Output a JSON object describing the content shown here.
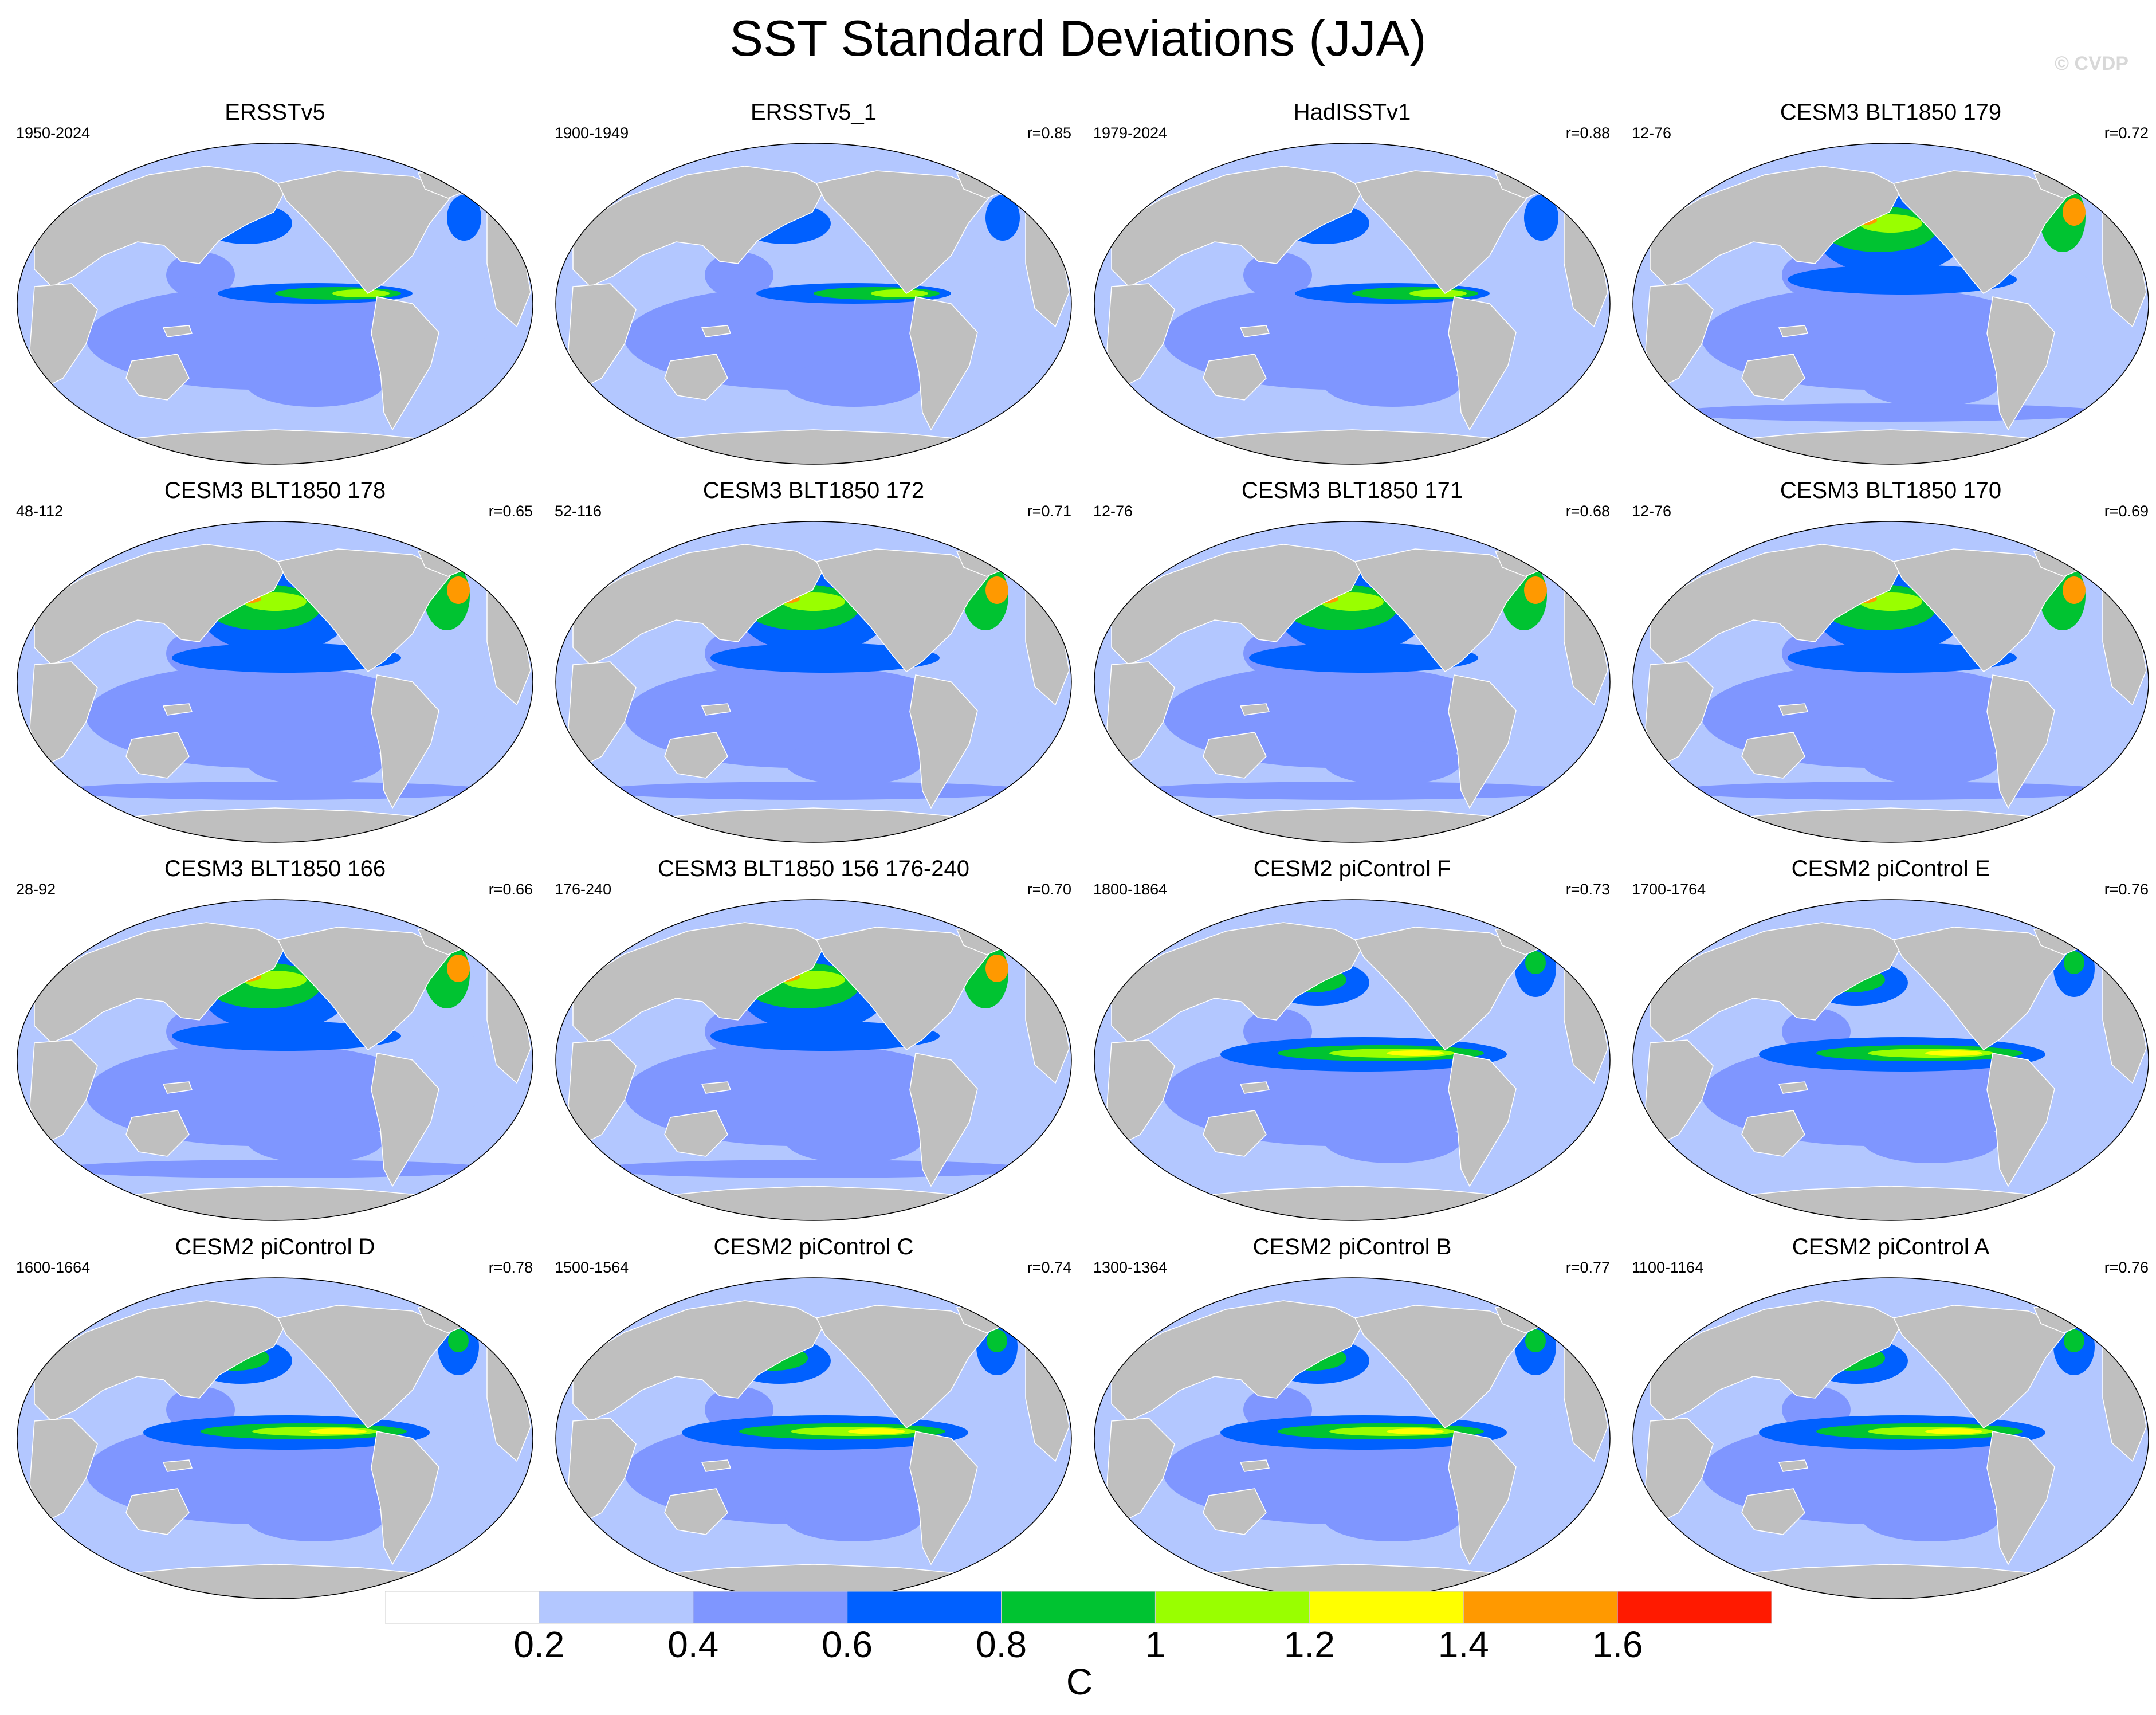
{
  "title": "SST Standard Deviations (JJA)",
  "watermark": "© CVDP",
  "colorbar": {
    "unit": "C",
    "labels": [
      "0.2",
      "0.4",
      "0.6",
      "0.8",
      "1",
      "1.2",
      "1.4",
      "1.6"
    ],
    "colors": [
      "#ffffff",
      "#b3c7ff",
      "#7f96ff",
      "#0060ff",
      "#00c331",
      "#99ff00",
      "#ffff00",
      "#ff9900",
      "#ff1a00"
    ]
  },
  "land_color": "#bfbfbf",
  "panels": [
    {
      "title": "ERSSTv5",
      "period": "1950-2024",
      "corr": ""
    },
    {
      "title": "ERSSTv5_1",
      "period": "1900-1949",
      "corr": "r=0.85"
    },
    {
      "title": "HadISSTv1",
      "period": "1979-2024",
      "corr": "r=0.88"
    },
    {
      "title": "CESM3 BLT1850 179",
      "period": "12-76",
      "corr": "r=0.72"
    },
    {
      "title": "CESM3 BLT1850 178",
      "period": "48-112",
      "corr": "r=0.65"
    },
    {
      "title": "CESM3 BLT1850 172",
      "period": "52-116",
      "corr": "r=0.71"
    },
    {
      "title": "CESM3 BLT1850 171",
      "period": "12-76",
      "corr": "r=0.68"
    },
    {
      "title": "CESM3 BLT1850 170",
      "period": "12-76",
      "corr": "r=0.69"
    },
    {
      "title": "CESM3 BLT1850 166",
      "period": "28-92",
      "corr": "r=0.66"
    },
    {
      "title": "CESM3 BLT1850 156 176-240",
      "period": "176-240",
      "corr": "r=0.70"
    },
    {
      "title": "CESM2 piControl F",
      "period": "1800-1864",
      "corr": "r=0.73"
    },
    {
      "title": "CESM2 piControl E",
      "period": "1700-1764",
      "corr": "r=0.76"
    },
    {
      "title": "CESM2 piControl D",
      "period": "1600-1664",
      "corr": "r=0.78"
    },
    {
      "title": "CESM2 piControl C",
      "period": "1500-1564",
      "corr": "r=0.74"
    },
    {
      "title": "CESM2 piControl B",
      "period": "1300-1364",
      "corr": "r=0.77"
    },
    {
      "title": "CESM2 piControl A",
      "period": "1100-1164",
      "corr": "r=0.76"
    }
  ]
}
